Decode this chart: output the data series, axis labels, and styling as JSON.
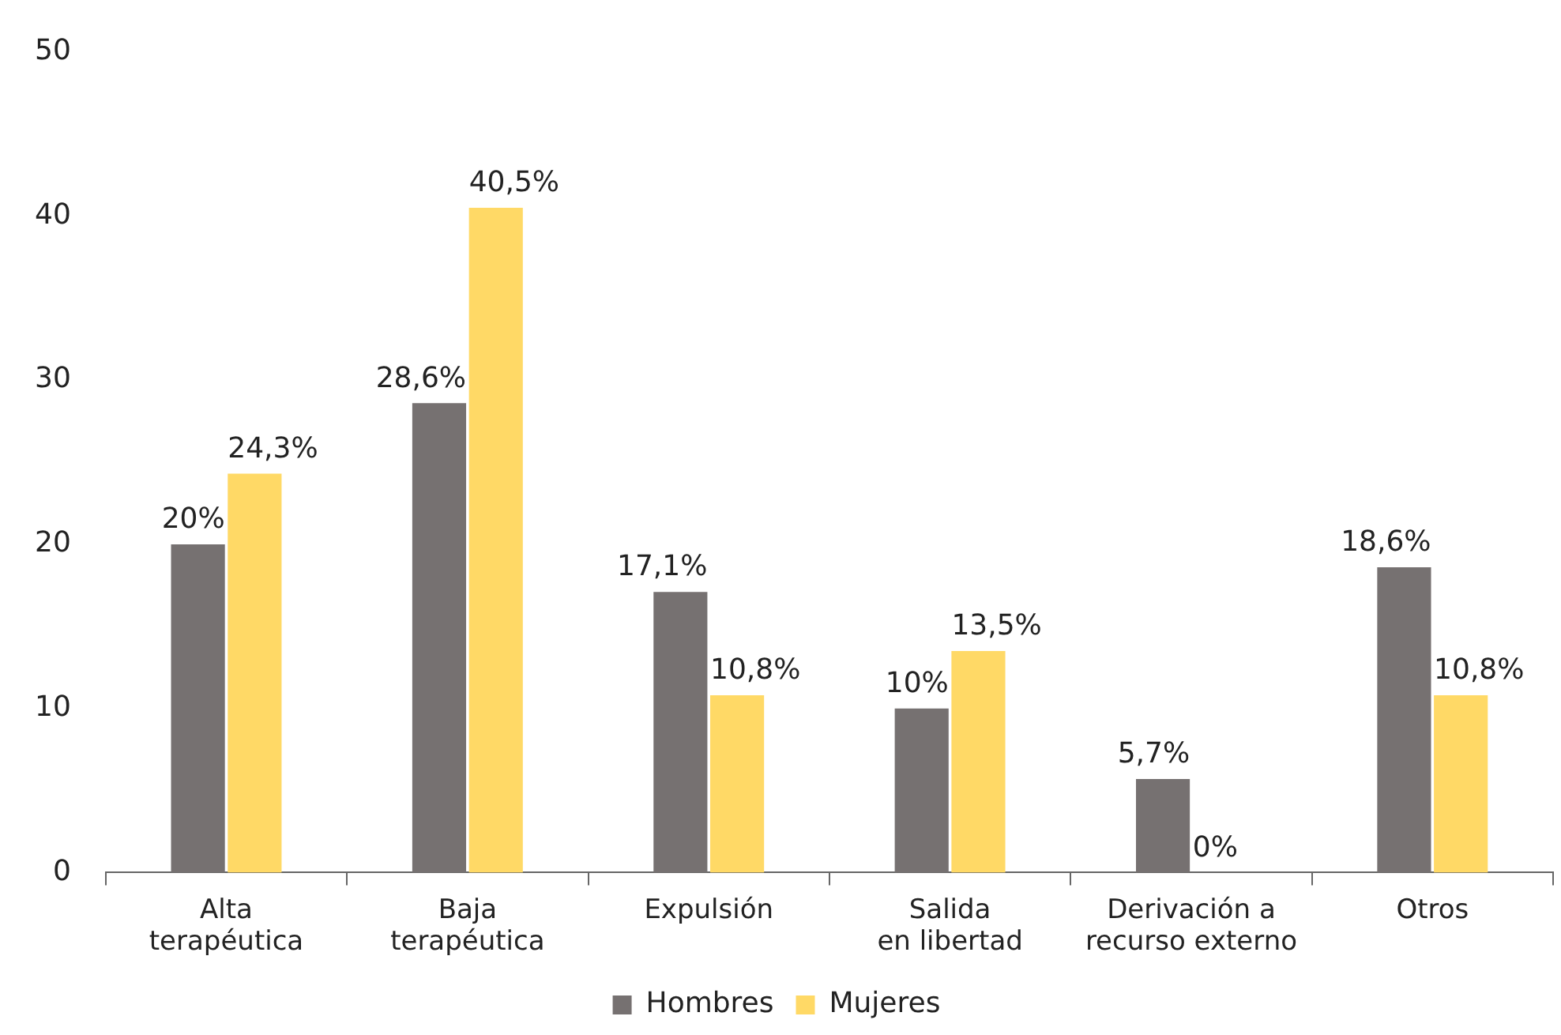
{
  "chart_data": {
    "type": "bar",
    "categories": [
      "Alta terapéutica",
      "Baja terapéutica",
      "Expulsión",
      "Salida en libertad",
      "Derivación a recurso externo",
      "Otros"
    ],
    "series": [
      {
        "name": "Hombres",
        "color": "#767171",
        "values": [
          20,
          28.6,
          17.1,
          10,
          5.7,
          18.6
        ],
        "value_labels": [
          "20%",
          "28,6%",
          "17,1%",
          "10%",
          "5,7%",
          "18,6%"
        ]
      },
      {
        "name": "Mujeres",
        "color": "#ffd966",
        "values": [
          24.3,
          40.5,
          10.8,
          13.5,
          0,
          10.8
        ],
        "value_labels": [
          "24,3%",
          "40,5%",
          "10,8%",
          "13,5%",
          "0%",
          "10,8%"
        ]
      }
    ],
    "ylim": [
      0,
      50
    ],
    "yticks": [
      0,
      10,
      20,
      30,
      40,
      50
    ],
    "grid": false,
    "legend": "bottom"
  }
}
